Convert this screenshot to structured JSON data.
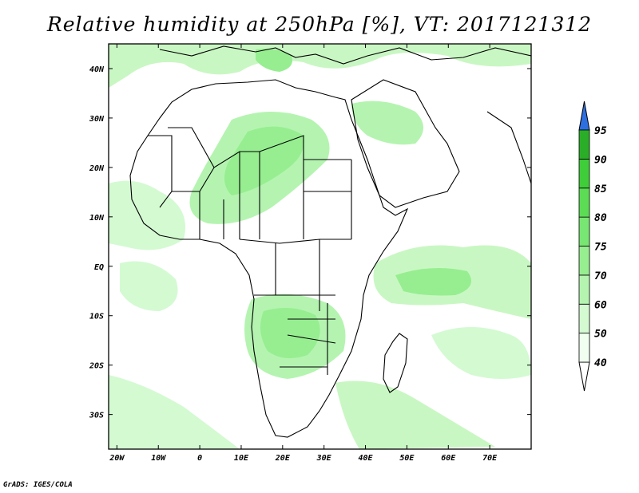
{
  "title": "Relative humidity at 250hPa [%], VT: 2017121312",
  "credit": "GrADS: IGES/COLA",
  "map": {
    "lon_labels": [
      "20W",
      "10W",
      "0",
      "10E",
      "20E",
      "30E",
      "40E",
      "50E",
      "60E",
      "70E"
    ],
    "lat_labels": [
      "40N",
      "30N",
      "20N",
      "10N",
      "EQ",
      "10S",
      "20S",
      "30S"
    ],
    "lon_range": [
      -22,
      80
    ],
    "lat_range": [
      -37,
      45
    ],
    "land_color": "#ffffff",
    "coast_color": "#000000"
  },
  "colorbar": {
    "levels": [
      "40",
      "50",
      "60",
      "70",
      "75",
      "80",
      "85",
      "90",
      "95"
    ],
    "colors": [
      "#f0fff0",
      "#d4fad2",
      "#b4f4b0",
      "#96ee90",
      "#78e672",
      "#5cdc55",
      "#3fcd3a",
      "#2aae28"
    ],
    "over_color": "#2e6fe0"
  }
}
